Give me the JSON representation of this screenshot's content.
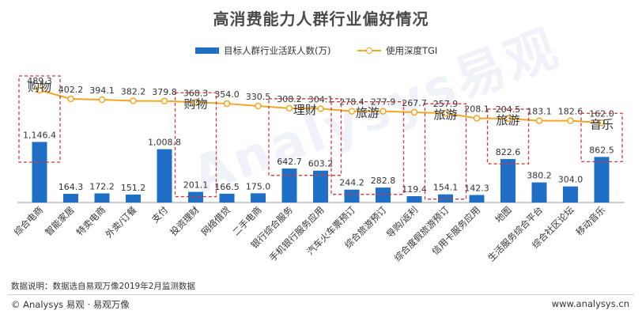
{
  "colors": {
    "bar": "#1f6fc6",
    "line": "#f5a623",
    "box_border": "#d0393e",
    "text": "#333333"
  },
  "watermark": "Analysys易观",
  "footer": {
    "note": "数据说明：数据选自易观万像2019年2月监测数据",
    "brand": "© Analysys 易观 · 易观万像",
    "website": "www.analysys.cn"
  },
  "chart_data": {
    "type": "bar",
    "title": "高消费能力人群行业偏好情况",
    "categories": [
      "综合电商",
      "智能家居",
      "特卖电商",
      "外卖/订餐",
      "支付",
      "投资理财",
      "网络借贷",
      "二手电商",
      "银行综合服务",
      "手机银行服务应用",
      "汽车火车票预订",
      "综合旅游预订",
      "导购/返利",
      "综合度假旅游预订",
      "信用卡服务应用",
      "地图",
      "生活服务综合平台",
      "综合社区论坛",
      "移动音乐"
    ],
    "series": [
      {
        "name": "目标人群行业活跃人数(万)",
        "type": "bar",
        "values": [
          1146.4,
          164.3,
          172.2,
          151.2,
          1008.8,
          201.1,
          166.5,
          175.0,
          642.7,
          603.2,
          244.2,
          282.8,
          119.4,
          154.1,
          142.3,
          822.6,
          380.2,
          304.0,
          862.5
        ],
        "labels": [
          "1,146.4",
          "164.3",
          "172.2",
          "151.2",
          "1,008.8",
          "201.1",
          "166.5",
          "175.0",
          "642.7",
          "603.2",
          "244.2",
          "282.8",
          "119.4",
          "154.1",
          "142.3",
          "822.6",
          "380.2",
          "304.0",
          "862.5"
        ]
      },
      {
        "name": "使用深度TGI",
        "type": "line",
        "values": [
          489.3,
          402.2,
          394.1,
          382.2,
          379.8,
          368.3,
          354.0,
          330.5,
          308.2,
          304.1,
          278.4,
          277.9,
          267.7,
          257.9,
          208.1,
          204.5,
          183.1,
          182.6,
          162.0
        ],
        "labels": [
          "489.3",
          "402.2",
          "394.1",
          "382.2",
          "379.8",
          "368.3",
          "354.0",
          "330.5",
          "308.2",
          "304.1",
          "278.4",
          "277.9",
          "267.7",
          "257.9",
          "208.1",
          "204.5",
          "183.1",
          "182.6",
          "162.0"
        ]
      }
    ],
    "annotations": [
      {
        "text": "购物",
        "covers": [
          0,
          0
        ]
      },
      {
        "text": "购物",
        "covers": [
          5,
          5
        ]
      },
      {
        "text": "理财",
        "covers": [
          8,
          9
        ]
      },
      {
        "text": "旅游",
        "covers": [
          10,
          11
        ]
      },
      {
        "text": "旅游",
        "covers": [
          13,
          13
        ]
      },
      {
        "text": "旅游",
        "covers": [
          15,
          15
        ]
      },
      {
        "text": "音乐",
        "covers": [
          18,
          18
        ]
      }
    ],
    "legend_position": "top-center",
    "grid": false
  }
}
